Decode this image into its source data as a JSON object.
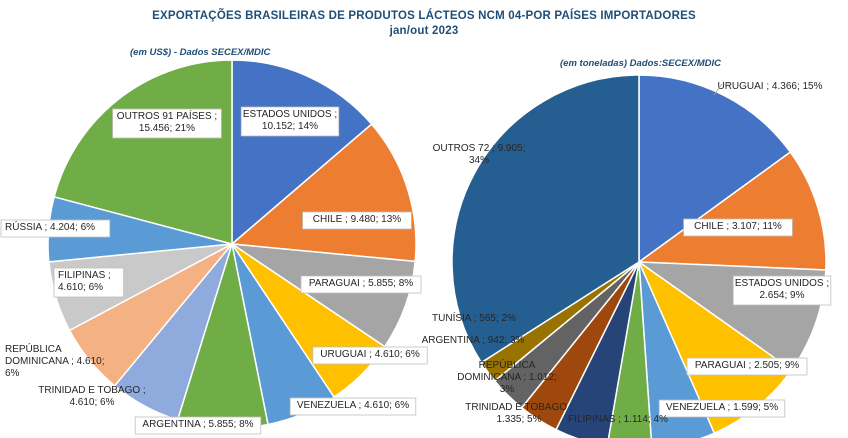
{
  "title": "EXPORTAÇÕES  BRASILEIRAS  DE PRODUTOS  LÁCTEOS NCM 04-POR PAÍSES  IMPORTADORES",
  "subtitle": "jan/out 2023",
  "chart_data": [
    {
      "type": "pie",
      "source_note": "(em US$) - Dados SECEX/MDIC",
      "slices": [
        {
          "name": "ESTADOS UNIDOS",
          "label": "ESTADOS UNIDOS ;|10.152; 14%",
          "value": 10.152,
          "percent": 14,
          "color": "#4472c4"
        },
        {
          "name": "CHILE",
          "label": "CHILE ; 9.480; 13%",
          "value": 9.48,
          "percent": 13,
          "color": "#ed7d31"
        },
        {
          "name": "PARAGUAI",
          "label": "PARAGUAI ; 5.855; 8%",
          "value": 5.855,
          "percent": 8,
          "color": "#a5a5a5"
        },
        {
          "name": "URUGUAI",
          "label": "URUGUAI ; 4.610; 6%",
          "value": 4.61,
          "percent": 6,
          "color": "#ffc000"
        },
        {
          "name": "VENEZUELA",
          "label": "VENEZUELA ; 4.610; 6%",
          "value": 4.61,
          "percent": 6,
          "color": "#5b9bd5"
        },
        {
          "name": "ARGENTINA",
          "label": "ARGENTINA ; 5.855; 8%",
          "value": 5.855,
          "percent": 8,
          "color": "#70ad47"
        },
        {
          "name": "TRINIDAD E TOBAGO",
          "label": "TRINIDAD E TOBAGO ;|4.610; 6%",
          "value": 4.61,
          "percent": 6,
          "color": "#8faadc"
        },
        {
          "name": "REPÚBLICA DOMINICANA",
          "label": "REPÚBLICA|DOMINICANA ; 4.610;|6%",
          "value": 4.61,
          "percent": 6,
          "color": "#f4b183"
        },
        {
          "name": "FILIPINAS",
          "label": "FILIPINAS ;|4.610; 6%",
          "value": 4.61,
          "percent": 6,
          "color": "#c9c9c9"
        },
        {
          "name": "RÚSSIA",
          "label": "RÚSSIA ; 4.204; 6%",
          "value": 4.204,
          "percent": 6,
          "color": "#5b9bd5"
        },
        {
          "name": "OUTROS 91 PAÍSES",
          "label": "OUTROS 91 PAÍSES ;|15.456; 21%",
          "value": 15.456,
          "percent": 21,
          "color": "#70ad47"
        }
      ]
    },
    {
      "type": "pie",
      "source_note": "(em toneladas) Dados:SECEX/MDIC",
      "slices": [
        {
          "name": "URUGUAI",
          "label": "URUGUAI ; 4.366; 15%",
          "value": 4.366,
          "percent": 15,
          "color": "#4472c4"
        },
        {
          "name": "CHILE",
          "label": "CHILE ; 3.107; 11%",
          "value": 3.107,
          "percent": 11,
          "color": "#ed7d31"
        },
        {
          "name": "ESTADOS UNIDOS",
          "label": "ESTADOS UNIDOS ;|2.654; 9%",
          "value": 2.654,
          "percent": 9,
          "color": "#a5a5a5"
        },
        {
          "name": "PARAGUAI",
          "label": "PARAGUAI ; 2.505; 9%",
          "value": 2.505,
          "percent": 9,
          "color": "#ffc000"
        },
        {
          "name": "VENEZUELA",
          "label": "VENEZUELA ; 1.599; 5%",
          "value": 1.599,
          "percent": 5,
          "color": "#5b9bd5"
        },
        {
          "name": "FILIPINAS",
          "label": "FILIPINAS ; 1.114; 4%",
          "value": 1.114,
          "percent": 4,
          "color": "#70ad47"
        },
        {
          "name": "TRINIDAD E TOBAGO",
          "label": "TRINIDAD E TOBAGO ;|1.335; 5%",
          "value": 1.335,
          "percent": 5,
          "color": "#264478"
        },
        {
          "name": "REPÚBLICA DOMINICANA",
          "label": "REPÚBLICA|DOMINICANA ; 1.012;|3%",
          "value": 1.012,
          "percent": 3,
          "color": "#9e480e"
        },
        {
          "name": "ARGENTINA",
          "label": "ARGENTINA ; 942; 3%",
          "value": 0.942,
          "percent": 3,
          "color": "#636363"
        },
        {
          "name": "TUNÍSIA",
          "label": "TUNÍSIA ; 565; 2%",
          "value": 0.565,
          "percent": 2,
          "color": "#997300"
        },
        {
          "name": "OUTROS 72",
          "label": "OUTROS 72 ; 9.905;|34%",
          "value": 9.905,
          "percent": 34,
          "color": "#255e91"
        }
      ]
    }
  ]
}
